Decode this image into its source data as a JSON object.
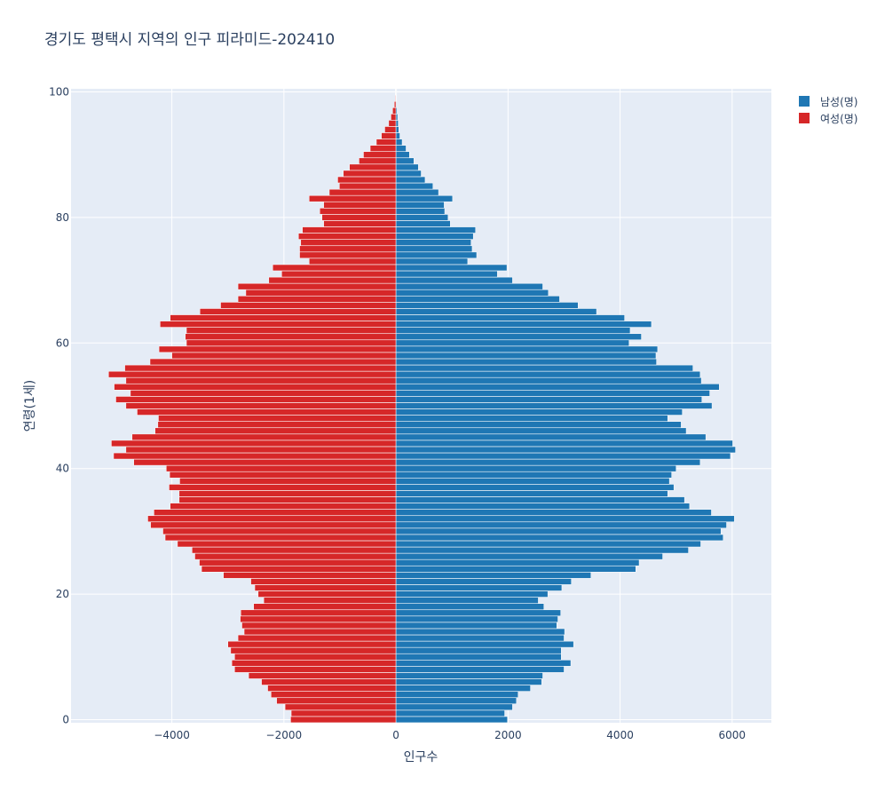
{
  "chart_data": {
    "type": "bar",
    "orientation": "horizontal",
    "title": "경기도 평택시 지역의 인구 피라미드-202410",
    "xlabel": "인구수",
    "ylabel": "연령(1세)",
    "xlim": [
      -5800,
      6700
    ],
    "ylim": [
      -0.5,
      100.5
    ],
    "x_tick_values": [
      -4000,
      -2000,
      0,
      2000,
      4000,
      6000
    ],
    "x_tick_labels": [
      "−4000",
      "−2000",
      "0",
      "2000",
      "4000",
      "6000"
    ],
    "y_tick_values": [
      0,
      20,
      40,
      60,
      80,
      100
    ],
    "y_tick_labels": [
      "0",
      "20",
      "40",
      "60",
      "80",
      "100"
    ],
    "ages": [
      0,
      1,
      2,
      3,
      4,
      5,
      6,
      7,
      8,
      9,
      10,
      11,
      12,
      13,
      14,
      15,
      16,
      17,
      18,
      19,
      20,
      21,
      22,
      23,
      24,
      25,
      26,
      27,
      28,
      29,
      30,
      31,
      32,
      33,
      34,
      35,
      36,
      37,
      38,
      39,
      40,
      41,
      42,
      43,
      44,
      45,
      46,
      47,
      48,
      49,
      50,
      51,
      52,
      53,
      54,
      55,
      56,
      57,
      58,
      59,
      60,
      61,
      62,
      63,
      64,
      65,
      66,
      67,
      68,
      69,
      70,
      71,
      72,
      73,
      74,
      75,
      76,
      77,
      78,
      79,
      80,
      81,
      82,
      83,
      84,
      85,
      86,
      87,
      88,
      89,
      90,
      91,
      92,
      93,
      94,
      95,
      96,
      97,
      98,
      99,
      100
    ],
    "grid": true,
    "legend_position": "top-right",
    "series": [
      {
        "name": "남성(명)",
        "color": "#1f77b4",
        "values": [
          1990,
          1940,
          2080,
          2150,
          2180,
          2400,
          2600,
          2620,
          3000,
          3120,
          2950,
          2950,
          3170,
          3000,
          3010,
          2870,
          2890,
          2940,
          2640,
          2540,
          2710,
          2960,
          3130,
          3480,
          4280,
          4340,
          4760,
          5220,
          5440,
          5840,
          5800,
          5900,
          6040,
          5630,
          5240,
          5150,
          4850,
          4960,
          4880,
          4920,
          5000,
          5430,
          5970,
          6060,
          6010,
          5530,
          5180,
          5090,
          4850,
          5110,
          5640,
          5460,
          5600,
          5770,
          5450,
          5430,
          5300,
          4650,
          4640,
          4670,
          4160,
          4380,
          4180,
          4560,
          4080,
          3580,
          3250,
          2920,
          2720,
          2620,
          2080,
          1810,
          1980,
          1280,
          1440,
          1360,
          1340,
          1380,
          1420,
          970,
          930,
          870,
          860,
          1010,
          760,
          660,
          520,
          450,
          400,
          320,
          240,
          180,
          110,
          70,
          50,
          40,
          30,
          20,
          10,
          5,
          2
        ]
      },
      {
        "name": "여성(명)",
        "color": "#d62728",
        "values": [
          -1880,
          -1870,
          -1980,
          -2130,
          -2230,
          -2290,
          -2400,
          -2630,
          -2880,
          -2930,
          -2880,
          -2950,
          -3000,
          -2820,
          -2710,
          -2750,
          -2780,
          -2770,
          -2540,
          -2360,
          -2460,
          -2520,
          -2590,
          -3080,
          -3470,
          -3510,
          -3590,
          -3640,
          -3900,
          -4120,
          -4160,
          -4380,
          -4430,
          -4320,
          -4030,
          -3870,
          -3870,
          -4050,
          -3860,
          -4040,
          -4100,
          -4680,
          -5040,
          -4820,
          -5080,
          -4710,
          -4300,
          -4250,
          -4240,
          -4620,
          -4820,
          -5000,
          -4740,
          -5030,
          -4820,
          -5130,
          -4840,
          -4390,
          -4000,
          -4230,
          -3740,
          -3760,
          -3740,
          -4210,
          -4030,
          -3500,
          -3130,
          -2820,
          -2680,
          -2820,
          -2270,
          -2040,
          -2200,
          -1550,
          -1720,
          -1720,
          -1700,
          -1740,
          -1670,
          -1290,
          -1320,
          -1360,
          -1290,
          -1550,
          -1190,
          -1010,
          -1040,
          -940,
          -830,
          -660,
          -580,
          -460,
          -350,
          -260,
          -200,
          -130,
          -90,
          -60,
          -30,
          -10,
          -5
        ]
      }
    ]
  }
}
